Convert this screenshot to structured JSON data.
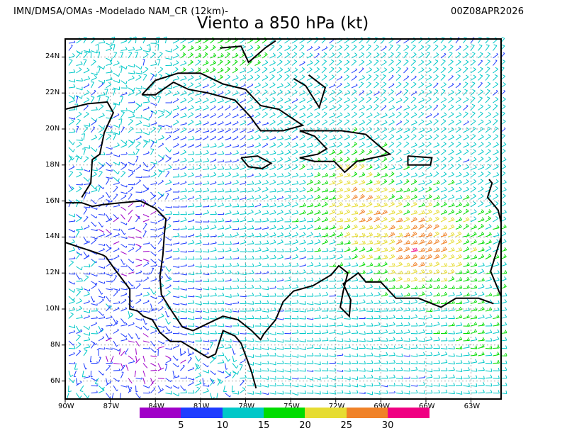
{
  "header": {
    "source": "IMN/DMSA/OMAs -Modelado NAM_CR (12km)-",
    "datetime": "00Z08APR2026",
    "title": "Viento a 850 hPa (kt)"
  },
  "map": {
    "lon_range": [
      -90,
      -61
    ],
    "lat_range": [
      5,
      25
    ],
    "lon_ticks": [
      {
        "value": -90,
        "label": "90W"
      },
      {
        "value": -87,
        "label": "87W"
      },
      {
        "value": -84,
        "label": "84W"
      },
      {
        "value": -81,
        "label": "81W"
      },
      {
        "value": -78,
        "label": "78W"
      },
      {
        "value": -75,
        "label": "75W"
      },
      {
        "value": -72,
        "label": "72W"
      },
      {
        "value": -69,
        "label": "69W"
      },
      {
        "value": -66,
        "label": "66W"
      },
      {
        "value": -63,
        "label": "63W"
      }
    ],
    "lat_ticks": [
      {
        "value": 24,
        "label": "24N"
      },
      {
        "value": 22,
        "label": "22N"
      },
      {
        "value": 20,
        "label": "20N"
      },
      {
        "value": 18,
        "label": "18N"
      },
      {
        "value": 16,
        "label": "16N"
      },
      {
        "value": 14,
        "label": "14N"
      },
      {
        "value": 12,
        "label": "12N"
      },
      {
        "value": 10,
        "label": "10N"
      },
      {
        "value": 8,
        "label": "8N"
      },
      {
        "value": 6,
        "label": "6N"
      }
    ]
  },
  "colorbar": {
    "colors": [
      "#a000c8",
      "#1e3cff",
      "#00c8c8",
      "#00dc00",
      "#e6dc32",
      "#f08228",
      "#f00082"
    ],
    "labels": [
      "5",
      "10",
      "15",
      "20",
      "25",
      "30"
    ]
  }
}
